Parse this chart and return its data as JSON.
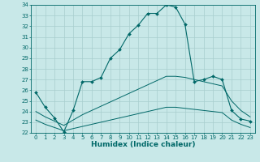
{
  "title": "",
  "xlabel": "Humidex (Indice chaleur)",
  "background_color": "#c8e8e8",
  "grid_color": "#a8cece",
  "line_color": "#006868",
  "xlim": [
    -0.5,
    23.5
  ],
  "ylim": [
    22,
    34
  ],
  "xticks": [
    0,
    1,
    2,
    3,
    4,
    5,
    6,
    7,
    8,
    9,
    10,
    11,
    12,
    13,
    14,
    15,
    16,
    17,
    18,
    19,
    20,
    21,
    22,
    23
  ],
  "yticks": [
    22,
    23,
    24,
    25,
    26,
    27,
    28,
    29,
    30,
    31,
    32,
    33,
    34
  ],
  "curve1_x": [
    0,
    1,
    2,
    3,
    4,
    5,
    6,
    7,
    8,
    9,
    10,
    11,
    12,
    13,
    14,
    15,
    16,
    17,
    18,
    19,
    20,
    21,
    22,
    23
  ],
  "curve1_y": [
    25.8,
    24.4,
    23.4,
    22.1,
    24.1,
    26.8,
    26.8,
    27.2,
    29.0,
    29.8,
    31.3,
    32.1,
    33.2,
    33.2,
    34.0,
    33.8,
    32.2,
    26.8,
    27.0,
    27.3,
    27.0,
    24.1,
    23.3,
    23.1
  ],
  "curve2_x": [
    0,
    1,
    2,
    3,
    4,
    5,
    6,
    7,
    8,
    9,
    10,
    11,
    12,
    13,
    14,
    15,
    16,
    17,
    18,
    19,
    20,
    21,
    22,
    23
  ],
  "curve2_y": [
    24.0,
    23.5,
    23.1,
    22.7,
    23.2,
    23.7,
    24.1,
    24.5,
    24.9,
    25.3,
    25.7,
    26.1,
    26.5,
    26.9,
    27.3,
    27.3,
    27.2,
    27.0,
    26.8,
    26.6,
    26.4,
    25.0,
    24.1,
    23.5
  ],
  "curve3_x": [
    0,
    1,
    2,
    3,
    4,
    5,
    6,
    7,
    8,
    9,
    10,
    11,
    12,
    13,
    14,
    15,
    16,
    17,
    18,
    19,
    20,
    21,
    22,
    23
  ],
  "curve3_y": [
    23.2,
    22.8,
    22.5,
    22.2,
    22.4,
    22.6,
    22.8,
    23.0,
    23.2,
    23.4,
    23.6,
    23.8,
    24.0,
    24.2,
    24.4,
    24.4,
    24.3,
    24.2,
    24.1,
    24.0,
    23.9,
    23.2,
    22.8,
    22.5
  ]
}
